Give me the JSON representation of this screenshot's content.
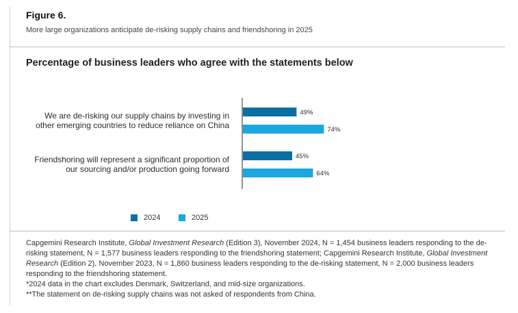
{
  "figure": {
    "label": "Figure 6.",
    "subtitle": "More large organizations anticipate de-risking supply chains and friendshoring in 2025"
  },
  "chart_data": {
    "type": "bar",
    "orientation": "horizontal",
    "title": "Percentage of business leaders who agree with the statements below",
    "categories": [
      [
        "We are de-risking our supply chains by investing in",
        "other emerging countries to reduce reliance on China"
      ],
      [
        "Friendshoring will represent a significant proportion of",
        "our sourcing and/or production going forward"
      ]
    ],
    "series": [
      {
        "name": "2024",
        "color": "#0b6fa4",
        "values": [
          49,
          45
        ],
        "labels": [
          "49%",
          "45%"
        ]
      },
      {
        "name": "2025",
        "color": "#1aa7df",
        "values": [
          74,
          64
        ],
        "labels": [
          "74%",
          "64%"
        ]
      }
    ],
    "xlim": [
      0,
      100
    ],
    "grid": false,
    "legend_position": "bottom"
  },
  "notes": {
    "source_pre_1": "Capgemini Research Institute, ",
    "source_italic_1": "Global Investment Research",
    "source_mid": " (Edition 3), November 2024, N = 1,454 business leaders responding to the de-risking statement, N = 1,577 business leaders responding to the friendshoring statement; Capgemini Research Institute, ",
    "source_italic_2": "Global Investment Research",
    "source_post": " (Edition 2), November 2023, N = 1,860 business leaders responding to the de-risking statement, N = 2,000 business leaders responding to the friendshoring statement.",
    "footnote_1": "*2024 data in the chart excludes Denmark, Switzerland, and mid-size organizations.",
    "footnote_2": "**The statement on de-risking supply chains was not asked of respondents from China."
  }
}
